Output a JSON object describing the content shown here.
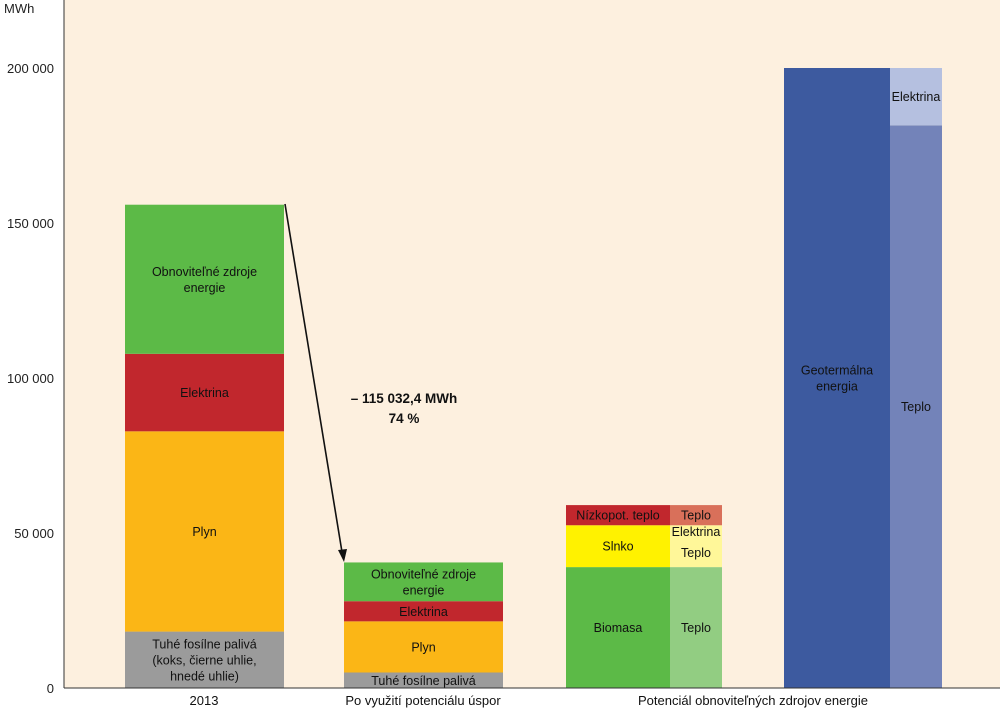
{
  "chart_data": {
    "type": "bar",
    "stacked": true,
    "ylabel": "MWh",
    "ylim": [
      0,
      220000
    ],
    "yticks": [
      0,
      50000,
      100000,
      150000,
      200000
    ],
    "ytick_labels": [
      "0",
      "50 000",
      "100 000",
      "150 000",
      "200 000"
    ],
    "grid": false,
    "background": "#fdf0df",
    "categories": [
      "2013",
      "Po využití potenciálu úspor",
      "Potenciál obnoviteľných zdrojov energie"
    ],
    "bars": [
      {
        "category": "2013",
        "segments": [
          {
            "label": "Tuhé fosílne palivá\n(koks, čierne uhlie,\nhnedé uhlie)",
            "value": 18200,
            "color": "#9b9b9b"
          },
          {
            "label": "Plyn",
            "value": 64600,
            "color": "#fbb616"
          },
          {
            "label": "Elektrina",
            "value": 25000,
            "color": "#c1272d"
          },
          {
            "label": "Obnoviteľné zdroje\nenergie",
            "value": 48100,
            "color": "#5cba47"
          }
        ]
      },
      {
        "category": "Po využití potenciálu úspor",
        "segments": [
          {
            "label": "Tuhé fosílne palivá",
            "value": 5000,
            "color": "#9b9b9b"
          },
          {
            "label": "Plyn",
            "value": 16500,
            "color": "#fbb616"
          },
          {
            "label": "Elektrina",
            "value": 6500,
            "color": "#c1272d"
          },
          {
            "label": "Obnoviteľné zdroje\nenergie",
            "value": 12500,
            "color": "#5cba47"
          }
        ]
      },
      {
        "category": "Potenciál obnoviteľných zdrojov energie",
        "sub": "left",
        "segments": [
          {
            "label": "Biomasa",
            "value": 39000,
            "color": "#5cba47"
          },
          {
            "label": "Slnko",
            "value": 13500,
            "color": "#fff200"
          },
          {
            "label": "Nízkopot. teplo",
            "value": 6500,
            "color": "#c1272d"
          }
        ]
      },
      {
        "category": "Potenciál obnoviteľných zdrojov energie",
        "sub": "right",
        "segments": [
          {
            "label": "Teplo",
            "value": 39000,
            "color": "#92cd82"
          },
          {
            "label": "Teplo",
            "value": 9500,
            "color": "#fff799"
          },
          {
            "label": "Elektrina",
            "value": 4000,
            "color": "#fff799"
          },
          {
            "label": "Teplo",
            "value": 6500,
            "color": "#d9705a"
          }
        ]
      },
      {
        "category": "Geotermálna",
        "segments": [
          {
            "label": "Geotermálna\nenergia",
            "value": 200000,
            "color": "#3d5a9f"
          }
        ]
      },
      {
        "category": "Geotermálna-detail",
        "segments": [
          {
            "label": "Teplo",
            "value": 181500,
            "color": "#7383b9"
          },
          {
            "label": "Elektrina",
            "value": 18500,
            "color": "#b5c0e0"
          }
        ]
      }
    ],
    "annotation": {
      "line1": "– 115 032,4 MWh",
      "line2": "74 %"
    }
  }
}
